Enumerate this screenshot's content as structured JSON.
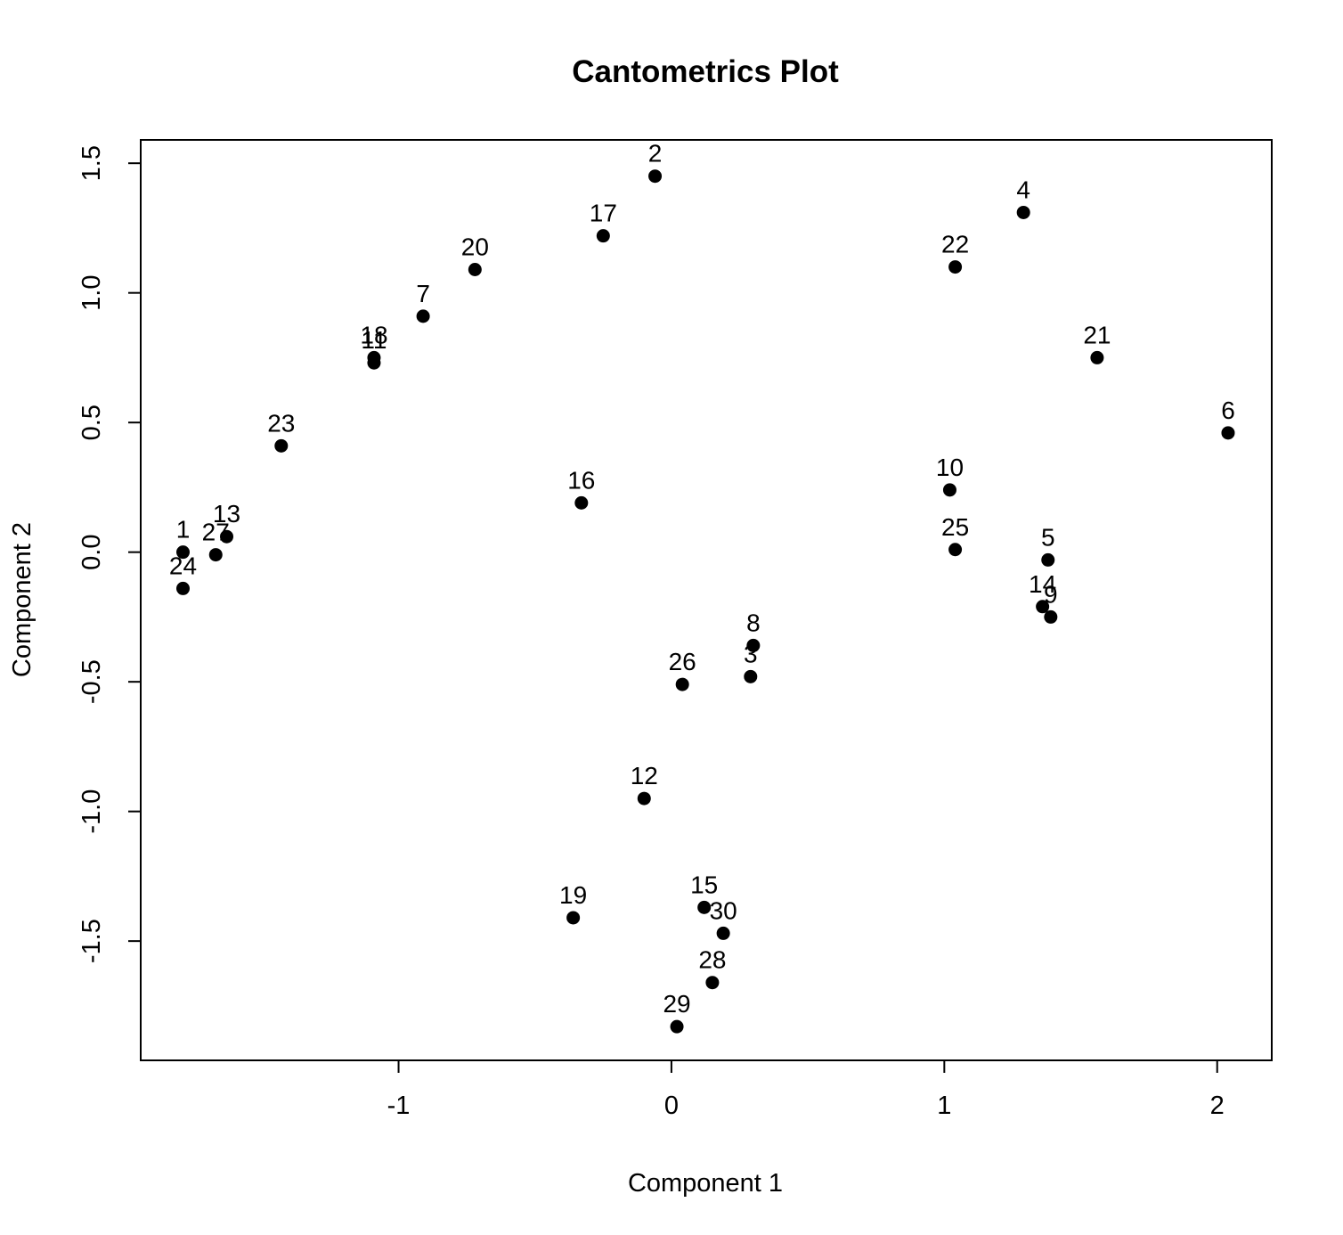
{
  "chart_data": {
    "type": "scatter",
    "title": "Cantometrics Plot",
    "xlabel": "Component 1",
    "ylabel": "Component 2",
    "xlim": [
      -1.945,
      2.2
    ],
    "ylim": [
      -1.96,
      1.59
    ],
    "xticks": [
      -1,
      0,
      1,
      2
    ],
    "xtick_labels": [
      "-1",
      "0",
      "1",
      "2"
    ],
    "yticks": [
      -1.5,
      -1.0,
      -0.5,
      0.0,
      0.5,
      1.0,
      1.5
    ],
    "ytick_labels": [
      "-1.5",
      "-1.0",
      "-0.5",
      "0.0",
      "0.5",
      "1.0",
      "1.5"
    ],
    "grid": false,
    "legend": "none",
    "color": "#000000",
    "points": [
      {
        "label": "1",
        "x": -1.79,
        "y": 0.0
      },
      {
        "label": "2",
        "x": -0.06,
        "y": 1.45
      },
      {
        "label": "3",
        "x": 0.29,
        "y": -0.48
      },
      {
        "label": "4",
        "x": 1.29,
        "y": 1.31
      },
      {
        "label": "5",
        "x": 1.38,
        "y": -0.03
      },
      {
        "label": "6",
        "x": 2.04,
        "y": 0.46
      },
      {
        "label": "7",
        "x": -0.91,
        "y": 0.91
      },
      {
        "label": "8",
        "x": 0.3,
        "y": -0.36
      },
      {
        "label": "9",
        "x": 1.39,
        "y": -0.25
      },
      {
        "label": "10",
        "x": 1.02,
        "y": 0.24
      },
      {
        "label": "11",
        "x": -1.09,
        "y": 0.73
      },
      {
        "label": "12",
        "x": -0.1,
        "y": -0.95
      },
      {
        "label": "13",
        "x": -1.63,
        "y": 0.06
      },
      {
        "label": "14",
        "x": 1.36,
        "y": -0.21
      },
      {
        "label": "15",
        "x": 0.12,
        "y": -1.37
      },
      {
        "label": "16",
        "x": -0.33,
        "y": 0.19
      },
      {
        "label": "17",
        "x": -0.25,
        "y": 1.22
      },
      {
        "label": "18",
        "x": -1.09,
        "y": 0.75
      },
      {
        "label": "19",
        "x": -0.36,
        "y": -1.41
      },
      {
        "label": "20",
        "x": -0.72,
        "y": 1.09
      },
      {
        "label": "21",
        "x": 1.56,
        "y": 0.75
      },
      {
        "label": "22",
        "x": 1.04,
        "y": 1.1
      },
      {
        "label": "23",
        "x": -1.43,
        "y": 0.41
      },
      {
        "label": "24",
        "x": -1.79,
        "y": -0.14
      },
      {
        "label": "25",
        "x": 1.04,
        "y": 0.01
      },
      {
        "label": "26",
        "x": 0.04,
        "y": -0.51
      },
      {
        "label": "27",
        "x": -1.67,
        "y": -0.01
      },
      {
        "label": "28",
        "x": 0.15,
        "y": -1.66
      },
      {
        "label": "29",
        "x": 0.02,
        "y": -1.83
      },
      {
        "label": "30",
        "x": 0.19,
        "y": -1.47
      }
    ]
  }
}
